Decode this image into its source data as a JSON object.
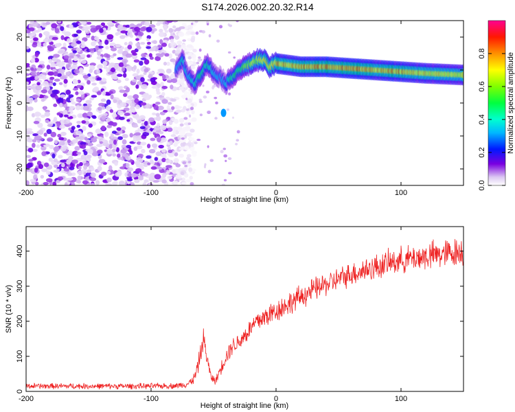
{
  "title": "S174.2026.002.20.32.R14",
  "chart_data": [
    {
      "type": "heatmap",
      "name": "spectrogram",
      "xlabel": "Height of straight line (km)",
      "ylabel": "Frequency (Hz)",
      "xlim": [
        -200,
        150
      ],
      "ylim": [
        -25,
        25
      ],
      "xticks": [
        -200,
        -100,
        0,
        100
      ],
      "yticks": [
        -20,
        -10,
        0,
        10,
        20
      ],
      "colorbar": {
        "label": "Normalized spectral amplitude",
        "range": [
          0,
          1
        ],
        "ticks": [
          0.0,
          0.2,
          0.4,
          0.6,
          0.8
        ],
        "tick_labels": [
          "0.0",
          "0.2",
          "0.4",
          "0.6",
          "0.8"
        ]
      },
      "ridge": {
        "description": "dominant spectral line",
        "x": [
          -80,
          -75,
          -70,
          -65,
          -60,
          -55,
          -50,
          -45,
          -40,
          -35,
          -30,
          -25,
          -20,
          -15,
          -10,
          -5,
          0,
          10,
          20,
          40,
          60,
          80,
          100,
          120,
          150
        ],
        "freq": [
          10,
          13,
          8,
          6,
          9,
          12,
          9,
          8,
          6,
          8,
          10,
          11,
          12,
          13,
          13,
          11,
          12,
          11.5,
          11,
          11,
          10.5,
          10,
          9.5,
          9,
          8.5
        ],
        "amplitude": [
          0.35,
          0.45,
          0.4,
          0.45,
          0.5,
          0.5,
          0.4,
          0.35,
          0.4,
          0.5,
          0.55,
          0.6,
          0.7,
          0.75,
          0.8,
          0.8,
          0.85,
          0.85,
          0.85,
          0.9,
          0.9,
          0.85,
          0.85,
          0.8,
          0.75
        ]
      },
      "noise_region": {
        "x_from": -200,
        "x_to": -75,
        "description": "scattered low-amplitude noise across all frequencies"
      },
      "secondary_feature": {
        "x": -42,
        "freq": -3,
        "amplitude": 0.3
      }
    },
    {
      "type": "line",
      "name": "snr",
      "xlabel": "Height of straight line (km)",
      "ylabel": "SNR (10 * v/v)",
      "xlim": [
        -200,
        150
      ],
      "ylim": [
        0,
        470
      ],
      "xticks": [
        -200,
        -100,
        0,
        100
      ],
      "yticks": [
        0,
        100,
        200,
        300,
        400
      ],
      "color": "#ee2222",
      "envelope": {
        "x": [
          -200,
          -150,
          -100,
          -80,
          -70,
          -65,
          -62,
          -58,
          -55,
          -52,
          -48,
          -45,
          -40,
          -35,
          -30,
          -25,
          -20,
          -15,
          -10,
          -5,
          0,
          10,
          20,
          30,
          40,
          50,
          60,
          70,
          80,
          90,
          100,
          110,
          120,
          130,
          140,
          150
        ],
        "y": [
          15,
          15,
          15,
          16,
          22,
          40,
          80,
          150,
          90,
          40,
          30,
          60,
          100,
          130,
          140,
          160,
          180,
          200,
          210,
          220,
          230,
          250,
          270,
          290,
          305,
          320,
          335,
          345,
          355,
          365,
          375,
          380,
          385,
          390,
          395,
          400
        ],
        "noise_amplitude": [
          10,
          10,
          10,
          10,
          12,
          20,
          30,
          40,
          25,
          15,
          15,
          20,
          30,
          30,
          30,
          35,
          35,
          40,
          40,
          40,
          40,
          40,
          40,
          40,
          40,
          40,
          40,
          45,
          45,
          45,
          45,
          45,
          50,
          50,
          50,
          50
        ]
      }
    }
  ]
}
